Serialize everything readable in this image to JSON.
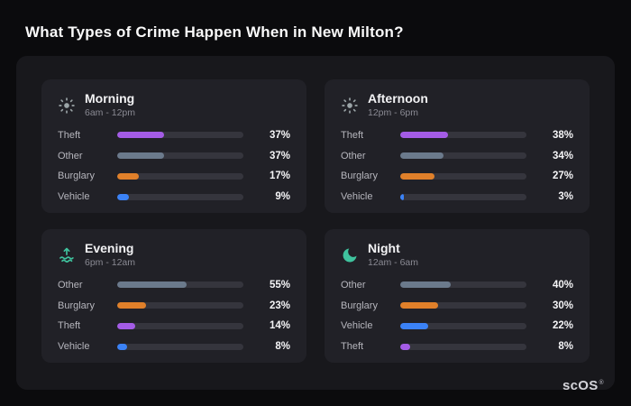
{
  "page": {
    "title": "What Types of Crime Happen When in New Milton?",
    "brand": "scOS",
    "brand_reg": "®"
  },
  "colors": {
    "theft": "#a45ce6",
    "other": "#6b7a8c",
    "burglary": "#e0802a",
    "vehicle": "#3b82f6",
    "track": "#35353d",
    "accent_teal": "#3fc39e",
    "icon_gray": "#9ba4a7"
  },
  "chart_data": [
    {
      "type": "bar",
      "title": "Morning",
      "subtitle": "6am - 12pm",
      "icon": "sun-icon",
      "unit": "%",
      "xlim": [
        0,
        100
      ],
      "categories": [
        "Theft",
        "Other",
        "Burglary",
        "Vehicle"
      ],
      "values": [
        37,
        37,
        17,
        9
      ]
    },
    {
      "type": "bar",
      "title": "Afternoon",
      "subtitle": "12pm - 6pm",
      "icon": "sun-icon",
      "unit": "%",
      "xlim": [
        0,
        100
      ],
      "categories": [
        "Theft",
        "Other",
        "Burglary",
        "Vehicle"
      ],
      "values": [
        38,
        34,
        27,
        3
      ]
    },
    {
      "type": "bar",
      "title": "Evening",
      "subtitle": "6pm - 12am",
      "icon": "sunset-icon",
      "unit": "%",
      "xlim": [
        0,
        100
      ],
      "categories": [
        "Other",
        "Burglary",
        "Theft",
        "Vehicle"
      ],
      "values": [
        55,
        23,
        14,
        8
      ]
    },
    {
      "type": "bar",
      "title": "Night",
      "subtitle": "12am - 6am",
      "icon": "moon-icon",
      "unit": "%",
      "xlim": [
        0,
        100
      ],
      "categories": [
        "Other",
        "Burglary",
        "Vehicle",
        "Theft"
      ],
      "values": [
        40,
        30,
        22,
        8
      ]
    }
  ]
}
